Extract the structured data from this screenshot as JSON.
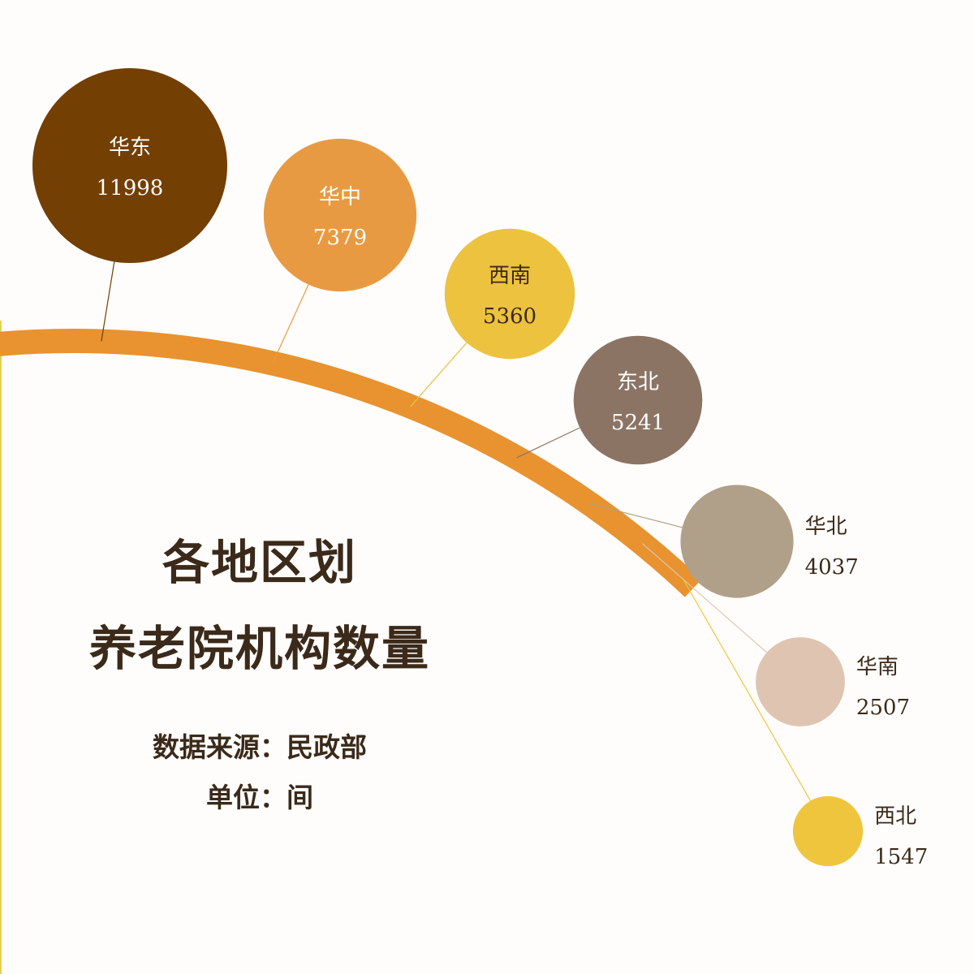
{
  "title": {
    "line1": "各地区划",
    "line2": "养老院机构数量"
  },
  "source": {
    "label": "数据来源：",
    "value": "民政部"
  },
  "unit": {
    "label": "单位：",
    "value": "间"
  },
  "colors": {
    "arc": "#e89330",
    "text_dark": "#3b2a1a",
    "side_rule": "#e6d24a"
  },
  "chart_data": {
    "type": "bubble",
    "title": "各地区划养老院机构数量",
    "unit": "间",
    "series": [
      {
        "name": "华东",
        "value": 11998,
        "color": "#733f03",
        "label_inside": true,
        "text_color": "#ffffff"
      },
      {
        "name": "华中",
        "value": 7379,
        "color": "#e89a42",
        "label_inside": true,
        "text_color": "#ffffff"
      },
      {
        "name": "西南",
        "value": 5360,
        "color": "#ecc23f",
        "label_inside": true,
        "text_color": "#3b2a1a"
      },
      {
        "name": "东北",
        "value": 5241,
        "color": "#8c7465",
        "label_inside": true,
        "text_color": "#ffffff"
      },
      {
        "name": "华北",
        "value": 4037,
        "color": "#b0a089",
        "label_inside": false,
        "text_color": "#3b2a1a"
      },
      {
        "name": "华南",
        "value": 2507,
        "color": "#dfc5b1",
        "label_inside": false,
        "text_color": "#3b2a1a"
      },
      {
        "name": "西北",
        "value": 1547,
        "color": "#f0c53e",
        "label_inside": false,
        "text_color": "#3b2a1a"
      }
    ]
  }
}
